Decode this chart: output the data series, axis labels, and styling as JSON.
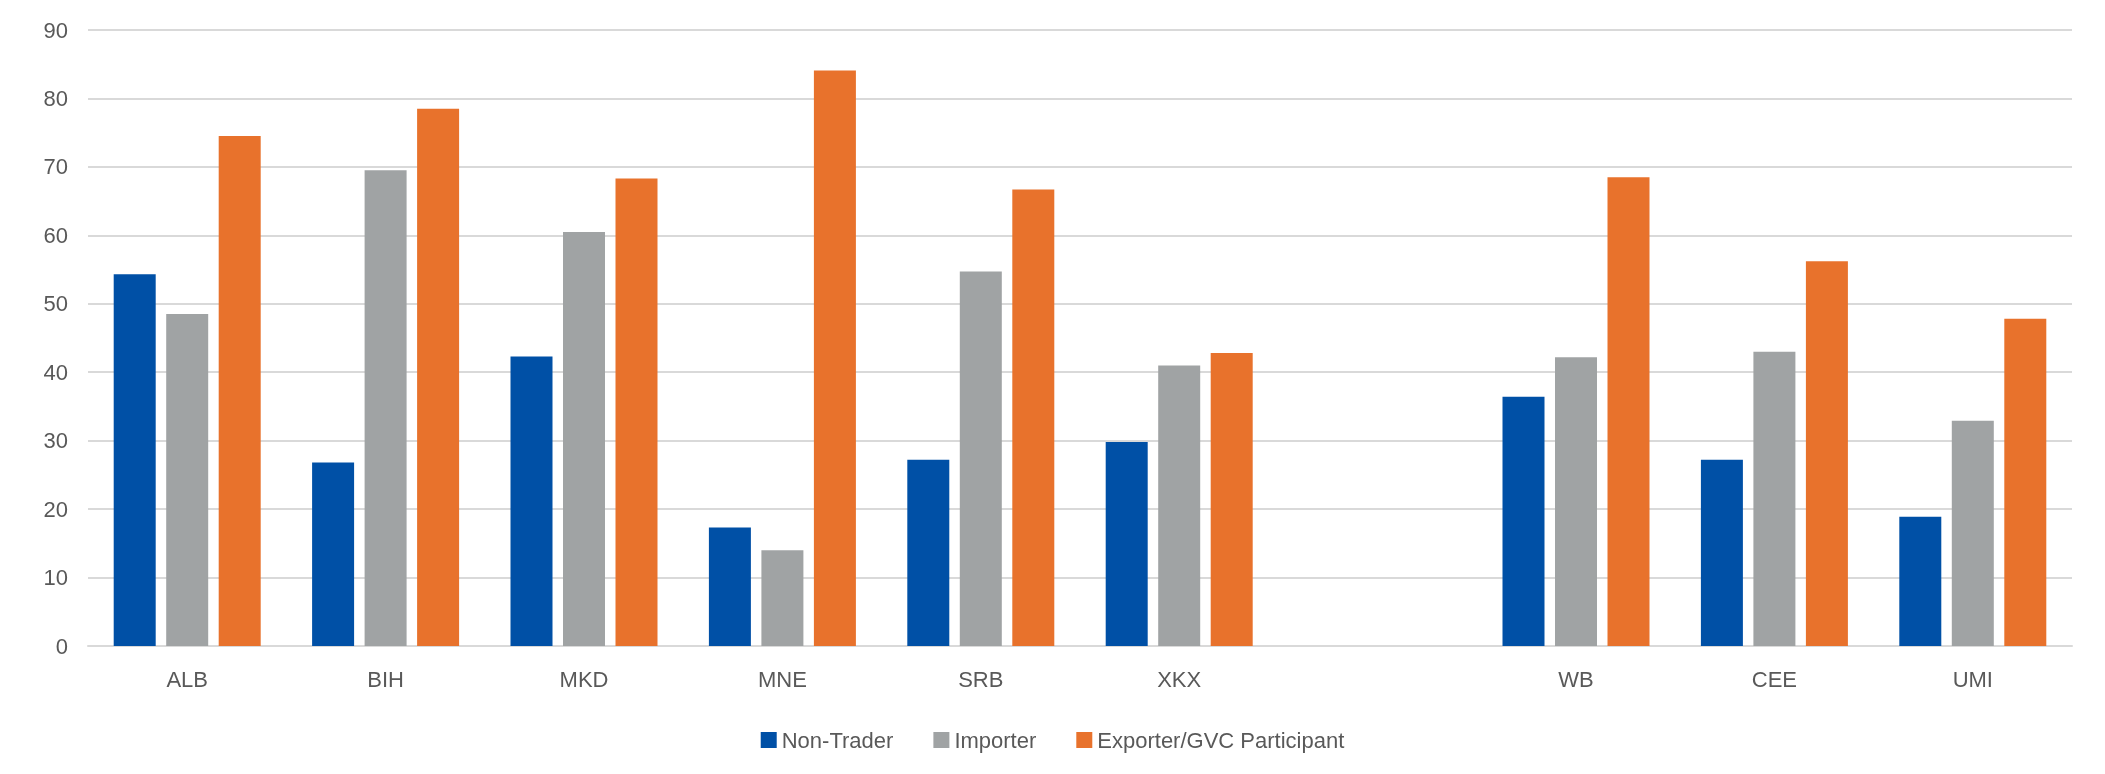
{
  "chart_data": {
    "type": "bar",
    "categories": [
      "ALB",
      "BIH",
      "MKD",
      "MNE",
      "SRB",
      "XKX",
      null,
      "WB",
      "CEE",
      "UMI"
    ],
    "series": [
      {
        "name": "Non-Trader",
        "color": "#0050a6",
        "values": [
          54.3,
          26.8,
          42.3,
          17.3,
          27.2,
          29.8,
          null,
          36.4,
          27.2,
          18.9
        ]
      },
      {
        "name": "Importer",
        "color": "#a0a3a4",
        "values": [
          48.5,
          69.5,
          60.5,
          14,
          54.7,
          41,
          null,
          42.2,
          43,
          32.9
        ]
      },
      {
        "name": "Exporter/GVC Participant",
        "color": "#e8722c",
        "values": [
          74.5,
          78.5,
          68.3,
          84.1,
          66.7,
          42.8,
          null,
          68.5,
          56.2,
          47.8
        ]
      }
    ],
    "ylim": [
      0,
      90
    ],
    "yticks": [
      0,
      10,
      20,
      30,
      40,
      50,
      60,
      70,
      80,
      90
    ],
    "grid": "y",
    "legend": "bottom"
  }
}
